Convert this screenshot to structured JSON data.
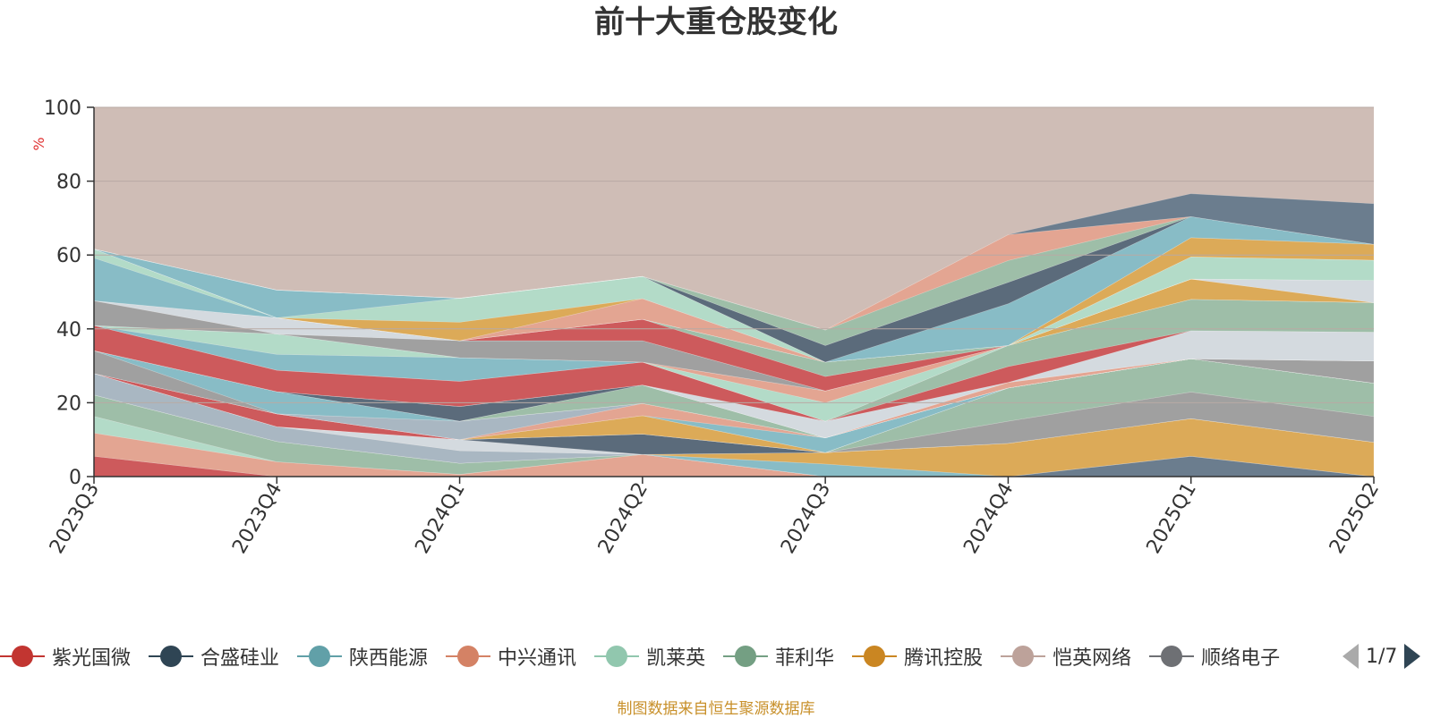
{
  "chart_data": {
    "type": "area",
    "stacked": true,
    "title": "前十大重仓股变化",
    "ylabel": "%",
    "ylim": [
      0,
      100
    ],
    "yticks": [
      0,
      20,
      40,
      60,
      80,
      100
    ],
    "grid": true,
    "legend_position": "bottom",
    "categories": [
      "2023Q3",
      "2023Q4",
      "2024Q1",
      "2024Q2",
      "2024Q3",
      "2024Q4",
      "2025Q1",
      "2025Q2"
    ],
    "layers": [
      {
        "color": "#cd5a5c",
        "values": [
          5.5,
          0,
          0,
          0,
          0,
          0,
          0,
          0
        ]
      },
      {
        "color": "#e3a592",
        "values": [
          6.3,
          4,
          0.6,
          6,
          0,
          0,
          0,
          0
        ]
      },
      {
        "color": "#b3dbc8",
        "values": [
          4.5,
          0,
          0,
          0,
          0,
          0,
          0,
          0
        ]
      },
      {
        "color": "#9ebea8",
        "values": [
          5.8,
          5.5,
          3,
          0,
          0,
          0,
          0,
          0
        ]
      },
      {
        "color": "#6b7d8e",
        "values": [
          0,
          0,
          0,
          0,
          0,
          0,
          5.5,
          0
        ]
      },
      {
        "color": "#88bcc6",
        "values": [
          0,
          0,
          0,
          0,
          3.4,
          0,
          0,
          0
        ]
      },
      {
        "color": "#dcaa58",
        "values": [
          0,
          0,
          0,
          0,
          3.1,
          9,
          10.2,
          9.3
        ]
      },
      {
        "color": "#a9b7c2",
        "values": [
          5.8,
          4,
          3.4,
          0,
          0,
          0,
          0,
          0
        ]
      },
      {
        "color": "#d4dadf",
        "values": [
          0,
          0,
          3,
          0,
          0,
          0,
          0,
          0
        ]
      },
      {
        "color": "#5b6b7b",
        "values": [
          0,
          0,
          0,
          5.5,
          0,
          0,
          0,
          0
        ]
      },
      {
        "color": "#a0a0a0",
        "values": [
          0,
          0,
          0,
          0,
          0,
          6,
          7.2,
          7
        ]
      },
      {
        "color": "#9ebea8",
        "values": [
          0,
          0,
          0,
          0,
          0,
          9,
          9,
          9
        ]
      },
      {
        "color": "#d4dadf",
        "values": [
          0,
          0,
          0,
          0,
          0,
          0,
          0,
          0
        ]
      },
      {
        "color": "#cd5a5c",
        "values": [
          0,
          3.5,
          0,
          0,
          0,
          0,
          0,
          0
        ]
      },
      {
        "color": "#dcaa58",
        "values": [
          0,
          0,
          0,
          5,
          0,
          0,
          0,
          0
        ]
      },
      {
        "color": "#9ebea8",
        "values": [
          0,
          0,
          0,
          0,
          0,
          0,
          0,
          0
        ]
      },
      {
        "color": "#88bcc6",
        "values": [
          0,
          0,
          0,
          0,
          4,
          0,
          0,
          0
        ]
      },
      {
        "color": "#e3a592",
        "values": [
          0,
          0,
          0,
          3.3,
          0,
          0,
          0,
          0
        ]
      },
      {
        "color": "#a9b7c2",
        "values": [
          0,
          0,
          5,
          0,
          0,
          0,
          0,
          0
        ]
      },
      {
        "color": "#a0a0a0",
        "values": [
          6.2,
          0,
          0,
          0,
          0,
          0,
          0,
          6
        ]
      },
      {
        "color": "#88bcc6",
        "values": [
          0,
          6,
          0,
          0,
          0,
          0,
          0,
          0
        ]
      },
      {
        "color": "#9ebea8",
        "values": [
          0,
          0,
          0,
          5,
          0,
          0,
          0,
          0
        ]
      },
      {
        "color": "#dcaa58",
        "values": [
          0,
          0,
          0,
          0,
          0,
          0,
          0,
          0
        ]
      },
      {
        "color": "#5b6b7b",
        "values": [
          0,
          0,
          4,
          0,
          0,
          0,
          0,
          0
        ]
      },
      {
        "color": "#e3a592",
        "values": [
          0,
          0,
          0,
          0,
          0,
          1.5,
          0,
          0
        ]
      },
      {
        "color": "#9ebea8",
        "values": [
          0,
          0,
          0,
          0,
          0,
          0,
          0,
          0
        ]
      },
      {
        "color": "#d4dadf",
        "values": [
          0,
          0,
          0,
          0,
          4.5,
          0,
          7.6,
          7.8
        ]
      },
      {
        "color": "#cd5a5c",
        "values": [
          6.8,
          5.8,
          6.8,
          6.2,
          0,
          4.3,
          0,
          0
        ]
      },
      {
        "color": "#9ebea8",
        "values": [
          0,
          0,
          0,
          0,
          0,
          5.7,
          8.5,
          8
        ]
      },
      {
        "color": "#88bcc6",
        "values": [
          0,
          4.3,
          6.4,
          0,
          0,
          0,
          0,
          0
        ]
      },
      {
        "color": "#b3dbc8",
        "values": [
          0,
          5.5,
          0,
          0,
          5,
          0,
          0,
          0
        ]
      },
      {
        "color": "#e3a592",
        "values": [
          0,
          0,
          0,
          0,
          3.2,
          0,
          0,
          0
        ]
      },
      {
        "color": "#dcaa58",
        "values": [
          0,
          0,
          0,
          0,
          0,
          0,
          5.5,
          0
        ]
      },
      {
        "color": "#a0a0a0",
        "values": [
          6.7,
          0,
          4.6,
          5.8,
          0,
          0,
          0,
          0
        ]
      },
      {
        "color": "#d4dadf",
        "values": [
          0,
          4.4,
          0,
          0,
          0,
          0,
          0,
          6
        ]
      },
      {
        "color": "#cd5a5c",
        "values": [
          0,
          0,
          0,
          5.8,
          3.9,
          0,
          0,
          0
        ]
      },
      {
        "color": "#9ebea8",
        "values": [
          0,
          0,
          0,
          0,
          3.9,
          0,
          0,
          0
        ]
      },
      {
        "color": "#88bcc6",
        "values": [
          11.6,
          0,
          0,
          0,
          0,
          0,
          0,
          0
        ]
      },
      {
        "color": "#b3dbc8",
        "values": [
          2.4,
          0,
          0,
          0,
          0,
          0,
          6,
          5.5
        ]
      },
      {
        "color": "#a9b7c2",
        "values": [
          0,
          0,
          0,
          0,
          0,
          0,
          0,
          0
        ]
      },
      {
        "color": "#e3a592",
        "values": [
          0,
          0,
          0,
          5.6,
          0,
          0,
          0,
          0
        ]
      },
      {
        "color": "#dcaa58",
        "values": [
          0,
          0,
          5,
          0,
          0,
          0,
          5.2,
          4.3
        ]
      },
      {
        "color": "#b3dbc8",
        "values": [
          0,
          0,
          6.5,
          6,
          0,
          0,
          0,
          0
        ]
      },
      {
        "color": "#88bcc6",
        "values": [
          0,
          7.5,
          0,
          0,
          0,
          11.3,
          5.7,
          0
        ]
      },
      {
        "color": "#5b6b7b",
        "values": [
          0,
          0,
          0,
          0,
          4.5,
          5.8,
          0,
          0
        ]
      },
      {
        "color": "#9ebea8",
        "values": [
          0,
          0,
          0,
          0,
          4.2,
          5.9,
          0,
          0
        ]
      },
      {
        "color": "#e3a592",
        "values": [
          0,
          0,
          0,
          0,
          0,
          7,
          0,
          0
        ]
      },
      {
        "color": "#6b7d8e",
        "values": [
          0,
          0,
          0,
          0,
          0,
          0,
          6.2,
          11
        ]
      }
    ]
  },
  "legend": {
    "items": [
      {
        "label": "紫光国微",
        "color": "#c23531"
      },
      {
        "label": "合盛硅业",
        "color": "#2f4554"
      },
      {
        "label": "陕西能源",
        "color": "#61a0a8"
      },
      {
        "label": "中兴通讯",
        "color": "#d48265"
      },
      {
        "label": "凯莱英",
        "color": "#91c7ae"
      },
      {
        "label": "菲利华",
        "color": "#749f83"
      },
      {
        "label": "腾讯控股",
        "color": "#ca8622"
      },
      {
        "label": "恺英网络",
        "color": "#bda29a"
      },
      {
        "label": "顺络电子",
        "color": "#6e7074"
      }
    ],
    "page_text": "1/7"
  },
  "source": "制图数据来自恒生聚源数据库",
  "colors": {
    "background_area": "#cfbdb6",
    "axis": "#333333",
    "grid": "#b8aaa4",
    "ylabel": "#e03030",
    "source": "#c8902a"
  }
}
